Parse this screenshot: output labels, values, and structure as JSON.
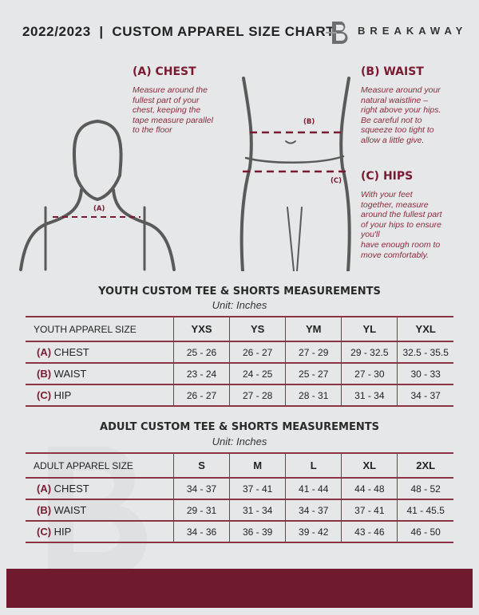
{
  "header": {
    "title": "2022/2023  |  CUSTOM APPAREL SIZE CHART",
    "brand": "BREAKAWAY"
  },
  "colors": {
    "accent": "#701a30",
    "background": "#e6e7e8",
    "silhouette": "#5a5a5a"
  },
  "measures": {
    "chest": {
      "heading": "(A) CHEST",
      "tag": "(A)",
      "lines": [
        "Measure around the",
        "fullest part of your",
        "chest, keeping the",
        "tape measure parallel",
        "to the floor"
      ]
    },
    "waist": {
      "heading": "(B) WAIST",
      "tag": "(B)",
      "lines": [
        "Measure around your",
        "natural waistline –",
        "right above your hips.",
        "Be careful not to",
        "squeeze too tight to",
        "allow a little give."
      ]
    },
    "hips": {
      "heading": "(C) HIPS",
      "tag": "(C)",
      "lines": [
        "With your feet",
        "together, measure",
        "around the fullest part",
        "of your hips to ensure",
        "you'll",
        "have enough room to",
        "move comfortably."
      ]
    }
  },
  "youth": {
    "title": "YOUTH CUSTOM TEE & SHORTS MEASUREMENTS",
    "unit": "Unit: Inches",
    "header": "YOUTH APPAREL SIZE",
    "sizes": [
      "YXS",
      "YS",
      "YM",
      "YL",
      "YXL"
    ],
    "rows": [
      {
        "letter": "(A)",
        "label": "CHEST",
        "values": [
          "25 - 26",
          "26 - 27",
          "27 - 29",
          "29 - 32.5",
          "32.5 - 35.5"
        ]
      },
      {
        "letter": "(B)",
        "label": "WAIST",
        "values": [
          "23 - 24",
          "24 - 25",
          "25 - 27",
          "27 - 30",
          "30 - 33"
        ]
      },
      {
        "letter": "(C)",
        "label": "HIP",
        "values": [
          "26 - 27",
          "27 - 28",
          "28 - 31",
          "31 - 34",
          "34 - 37"
        ]
      }
    ]
  },
  "adult": {
    "title": "ADULT CUSTOM TEE & SHORTS MEASUREMENTS",
    "unit": "Unit: Inches",
    "header": "ADULT APPAREL SIZE",
    "sizes": [
      "S",
      "M",
      "L",
      "XL",
      "2XL"
    ],
    "rows": [
      {
        "letter": "(A)",
        "label": "CHEST",
        "values": [
          "34 - 37",
          "37 - 41",
          "41 - 44",
          "44 - 48",
          "48 - 52"
        ]
      },
      {
        "letter": "(B)",
        "label": "WAIST",
        "values": [
          "29 - 31",
          "31 - 34",
          "34 - 37",
          "37 - 41",
          "41 - 45.5"
        ]
      },
      {
        "letter": "(C)",
        "label": "HIP",
        "values": [
          "34 - 36",
          "36 - 39",
          "39 - 42",
          "43 - 46",
          "46 - 50"
        ]
      }
    ]
  }
}
